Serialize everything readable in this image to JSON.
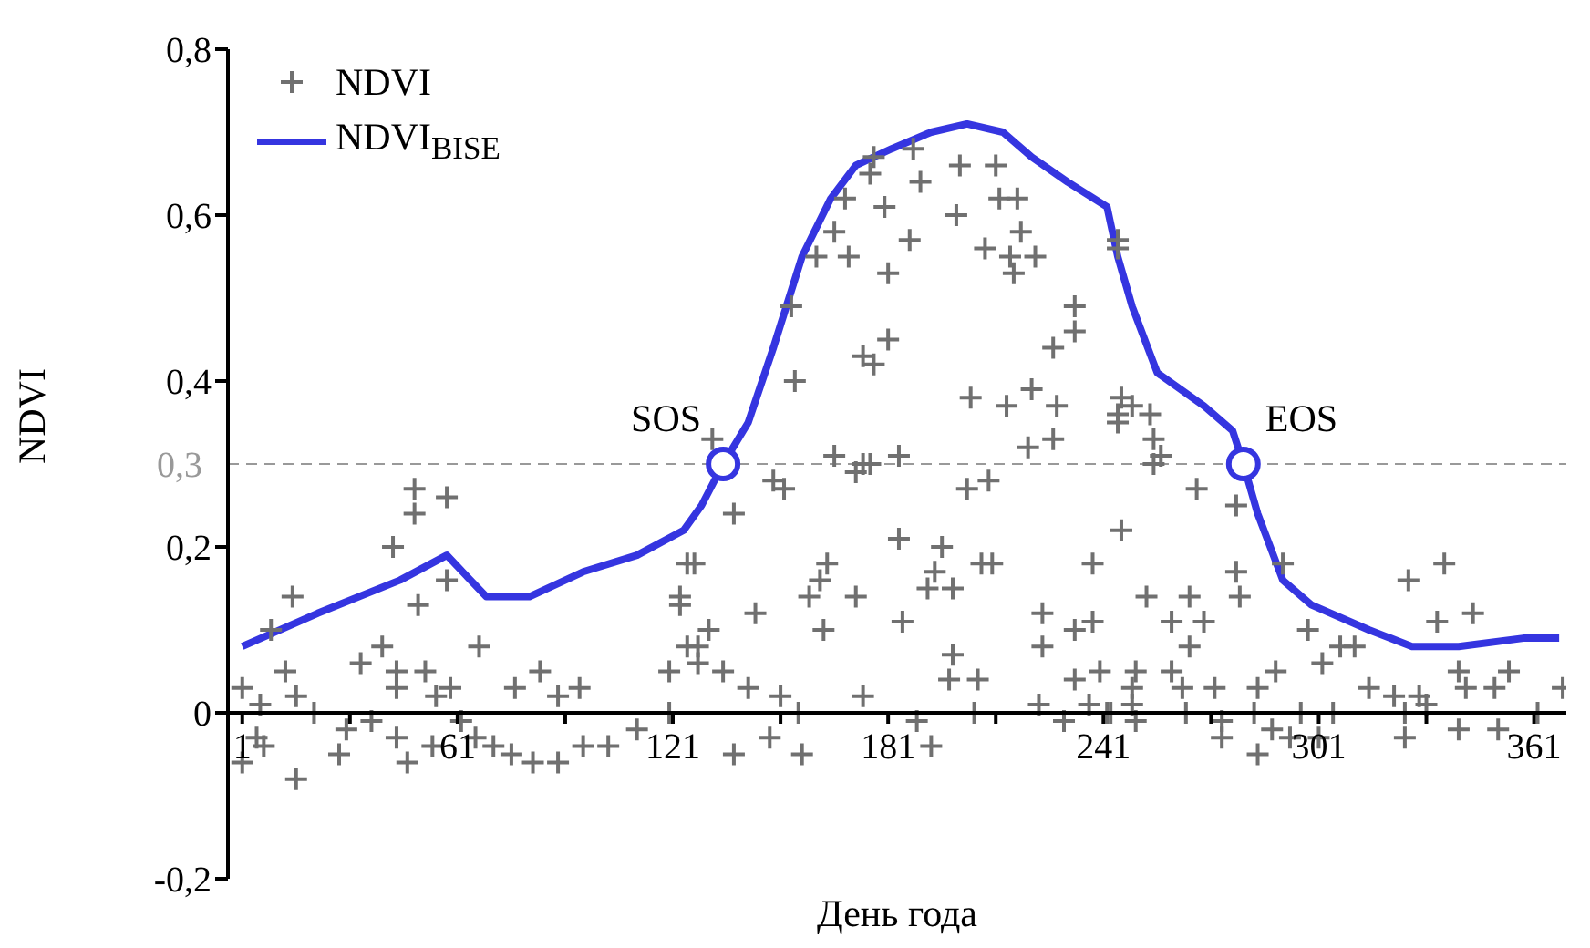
{
  "chart_data": {
    "type": "scatter",
    "xlabel": "День года",
    "ylabel": "NDVI",
    "xlim": [
      -3,
      370
    ],
    "ylim": [
      -0.2,
      0.8
    ],
    "xticks": [
      1,
      {
        "value": 31,
        "label": null
      },
      61,
      {
        "value": 91,
        "label": null
      },
      121,
      {
        "value": 151,
        "label": null
      },
      181,
      {
        "value": 211,
        "label": null
      },
      241,
      {
        "value": 271,
        "label": null
      },
      301,
      {
        "value": 331,
        "label": null
      },
      361
    ],
    "yticks": [
      {
        "value": -0.2,
        "label": "-0,2"
      },
      0,
      {
        "value": 0.2,
        "label": "0,2"
      },
      {
        "value": 0.4,
        "label": "0,4"
      },
      {
        "value": 0.6,
        "label": "0,6"
      },
      {
        "value": 0.8,
        "label": "0,8"
      }
    ],
    "legend": "top left",
    "grid": false,
    "series": [
      {
        "name": "NDVI",
        "color": "#707070",
        "marker": "cross",
        "x": [
          15,
          9,
          49,
          49,
          58,
          43,
          50,
          58,
          67,
          40,
          34,
          44,
          52,
          44,
          13,
          16,
          1,
          6,
          5,
          7,
          1,
          16,
          21,
          30,
          28,
          37,
          44,
          47,
          54,
          59,
          55,
          62,
          66,
          71,
          76,
          82,
          89,
          96,
          103,
          111,
          120,
          77,
          84,
          89,
          95,
          120,
          123,
          125,
          125,
          132,
          155,
          154,
          161,
          166,
          169,
          177,
          188,
          176,
          180,
          190,
          170,
          187,
          181,
          201,
          211,
          212,
          217,
          200,
          218,
          208,
          215,
          222,
          216,
          245,
          233,
          233,
          227,
          174,
          181,
          177,
          204,
          214,
          221,
          228,
          246,
          245,
          166,
          174,
          184,
          220,
          227,
          149,
          152,
          138,
          127,
          123,
          131,
          128,
          128,
          172,
          176,
          203,
          209,
          184,
          196,
          164,
          162,
          159,
          172,
          163,
          144,
          185,
          194,
          192,
          199,
          207,
          210,
          238,
          224,
          233,
          238,
          224,
          199,
          198,
          206,
          174,
          135,
          142,
          151,
          156,
          138,
          148,
          157,
          189,
          193,
          205,
          223,
          230,
          237,
          243,
          240,
          233,
          250,
          249,
          245,
          245,
          249,
          254,
          255,
          255,
          257,
          267,
          278,
          246,
          278,
          279,
          291,
          253,
          265,
          260,
          269,
          265,
          298,
          307,
          311,
          302,
          326,
          336,
          344,
          334,
          340,
          342,
          354,
          350,
          369,
          249,
          260,
          263,
          272,
          284,
          289,
          315,
          322,
          329,
          242,
          250,
          264,
          274,
          283,
          288,
          296,
          305,
          325,
          331,
          340,
          351,
          362,
          274,
          284,
          293,
          301,
          325
        ],
        "values": [
          0.14,
          0.1,
          0.27,
          0.24,
          0.26,
          0.2,
          0.13,
          0.16,
          0.08,
          0.08,
          0.06,
          0.05,
          0.05,
          0.03,
          0.05,
          0.02,
          0.03,
          0.01,
          -0.03,
          -0.04,
          -0.06,
          -0.08,
          0,
          -0.02,
          -0.05,
          -0.01,
          -0.03,
          -0.06,
          -0.04,
          0.03,
          0.02,
          -0.01,
          -0.03,
          -0.04,
          -0.05,
          -0.06,
          -0.06,
          -0.04,
          -0.04,
          -0.02,
          0,
          0.03,
          0.05,
          0.02,
          0.03,
          0.05,
          0.13,
          0.18,
          0.08,
          0.33,
          0.4,
          0.49,
          0.55,
          0.58,
          0.62,
          0.67,
          0.68,
          0.65,
          0.61,
          0.64,
          0.55,
          0.57,
          0.53,
          0.66,
          0.66,
          0.62,
          0.62,
          0.6,
          0.58,
          0.56,
          0.55,
          0.55,
          0.53,
          0.56,
          0.49,
          0.46,
          0.44,
          0.43,
          0.45,
          0.42,
          0.38,
          0.37,
          0.39,
          0.37,
          0.38,
          0.35,
          0.31,
          0.3,
          0.31,
          0.32,
          0.33,
          0.28,
          0.27,
          0.24,
          0.18,
          0.14,
          0.1,
          0.08,
          0.06,
          0.29,
          0.3,
          0.27,
          0.28,
          0.21,
          0.2,
          0.18,
          0.16,
          0.14,
          0.14,
          0.1,
          0.12,
          0.11,
          0.17,
          0.15,
          0.15,
          0.18,
          0.18,
          0.18,
          0.12,
          0.1,
          0.11,
          0.08,
          0.07,
          0.04,
          0.04,
          0.02,
          0.05,
          0.03,
          0.02,
          0,
          -0.05,
          -0.03,
          -0.05,
          -0.01,
          -0.04,
          0,
          0.01,
          -0.01,
          0.01,
          0,
          0.05,
          0.04,
          0.05,
          0.01,
          0.57,
          0.36,
          0.37,
          0.36,
          0.33,
          0.3,
          0.31,
          0.27,
          0.25,
          0.22,
          0.17,
          0.14,
          0.18,
          0.14,
          0.14,
          0.11,
          0.11,
          0.08,
          0.1,
          0.08,
          0.08,
          0.06,
          0.16,
          0.18,
          0.12,
          0.11,
          0.05,
          0.03,
          0.05,
          0.03,
          0.03,
          0.03,
          0.05,
          0.03,
          0.03,
          0.03,
          0.05,
          0.03,
          0.02,
          0.02,
          0,
          -0.01,
          0,
          -0.01,
          0,
          -0.02,
          0,
          0,
          0,
          0.01,
          -0.02,
          -0.02,
          0,
          -0.03,
          -0.05,
          -0.03,
          -0.03,
          -0.03
        ]
      },
      {
        "type": "line",
        "name": "NDVI$_{BISE}$",
        "color": "#3535e0",
        "line_style": "solid",
        "marker": "none",
        "x": [
          1,
          22,
          45,
          58,
          69,
          81,
          96,
          111,
          124,
          129,
          135,
          142,
          149,
          157,
          165,
          172,
          182,
          193,
          203,
          213,
          221,
          231,
          242,
          245,
          249,
          256,
          269,
          277,
          280,
          284,
          291,
          299,
          315,
          327,
          340,
          358,
          368
        ],
        "values": [
          0.08,
          0.12,
          0.16,
          0.19,
          0.14,
          0.14,
          0.17,
          0.19,
          0.22,
          0.25,
          0.3,
          0.35,
          0.44,
          0.55,
          0.62,
          0.66,
          0.68,
          0.7,
          0.71,
          0.7,
          0.67,
          0.64,
          0.61,
          0.55,
          0.49,
          0.41,
          0.37,
          0.34,
          0.3,
          0.24,
          0.16,
          0.13,
          0.1,
          0.08,
          0.08,
          0.09,
          0.09
        ]
      }
    ],
    "ref_lines": [
      {
        "axis": "y",
        "value": 0.3,
        "label": "0,3",
        "color": "#999999",
        "line_style": "dashed"
      }
    ],
    "annotations": [
      {
        "text": "SOS",
        "x": 135,
        "y": 0.3
      },
      {
        "text": "EOS",
        "x": 280,
        "y": 0.3
      }
    ]
  }
}
